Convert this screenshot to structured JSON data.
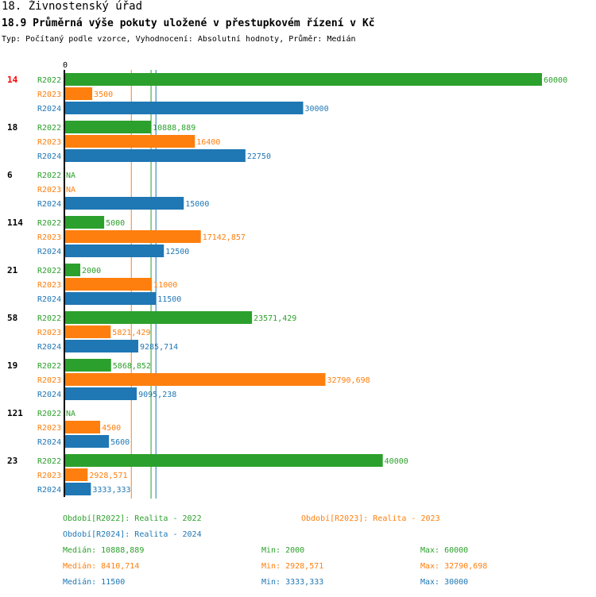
{
  "header": {
    "section": "18. Živnostenský úřad",
    "title": "18.9 Průměrná výše pokuty uložené v přestupkovém řízení v Kč",
    "subtitle": "Typ: Počítaný podle vzorce, Vyhodnocení: Absolutní hodnoty, Průměr: Medián"
  },
  "colors": {
    "R2022": "#2ca02c",
    "R2023": "#ff7f0e",
    "R2024": "#1f77b4",
    "highlight": "#ff0000"
  },
  "chart_data": {
    "type": "bar",
    "orientation": "horizontal",
    "title": "18.9 Průměrná výše pokuty uložené v přestupkovém řízení v Kč",
    "axis_zero_label": "0",
    "xlim": [
      0,
      60000
    ],
    "series_names": [
      "R2022",
      "R2023",
      "R2024"
    ],
    "groups": [
      {
        "label": "14",
        "highlight": true,
        "values": [
          60000,
          3500,
          30000
        ],
        "labels": [
          "60000",
          "3500",
          "30000"
        ]
      },
      {
        "label": "18",
        "highlight": false,
        "values": [
          10888.889,
          16400,
          22750
        ],
        "labels": [
          "10888,889",
          "16400",
          "22750"
        ]
      },
      {
        "label": "6",
        "highlight": false,
        "values": [
          null,
          null,
          15000
        ],
        "labels": [
          "NA",
          "NA",
          "15000"
        ]
      },
      {
        "label": "114",
        "highlight": false,
        "values": [
          5000,
          17142.857,
          12500
        ],
        "labels": [
          "5000",
          "17142,857",
          "12500"
        ]
      },
      {
        "label": "21",
        "highlight": false,
        "values": [
          2000,
          11000,
          11500
        ],
        "labels": [
          "2000",
          "11000",
          "11500"
        ]
      },
      {
        "label": "58",
        "highlight": false,
        "values": [
          23571.429,
          5821.429,
          9285.714
        ],
        "labels": [
          "23571,429",
          "5821,429",
          "9285,714"
        ]
      },
      {
        "label": "19",
        "highlight": false,
        "values": [
          5868.852,
          32790.698,
          9095.238
        ],
        "labels": [
          "5868,852",
          "32790,698",
          "9095,238"
        ]
      },
      {
        "label": "121",
        "highlight": false,
        "values": [
          null,
          4500,
          5600
        ],
        "labels": [
          "NA",
          "4500",
          "5600"
        ]
      },
      {
        "label": "23",
        "highlight": false,
        "values": [
          40000,
          2928.571,
          3333.333
        ],
        "labels": [
          "40000",
          "2928,571",
          "3333,333"
        ]
      }
    ],
    "reference_lines": [
      {
        "series": "R2022",
        "value": 10888.889
      },
      {
        "series": "R2023",
        "value": 8410.714
      },
      {
        "series": "R2024",
        "value": 11500
      }
    ]
  },
  "legend": {
    "periods": [
      {
        "series": "R2022",
        "text": "Období[R2022]: Realita - 2022"
      },
      {
        "series": "R2023",
        "text": "Období[R2023]: Realita - 2023"
      },
      {
        "series": "R2024",
        "text": "Období[R2024]: Realita - 2024"
      }
    ],
    "stats": [
      {
        "series": "R2022",
        "median": "Medián: 10888,889",
        "min": "Min: 2000",
        "max": "Max: 60000"
      },
      {
        "series": "R2023",
        "median": "Medián: 8410,714",
        "min": "Min: 2928,571",
        "max": "Max: 32790,698"
      },
      {
        "series": "R2024",
        "median": "Medián: 11500",
        "min": "Min: 3333,333",
        "max": "Max: 30000"
      }
    ]
  }
}
